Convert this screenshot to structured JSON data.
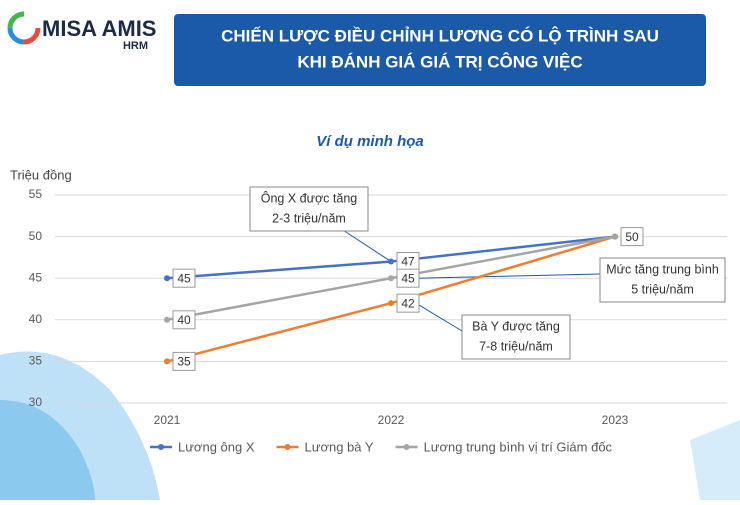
{
  "logo": {
    "brand": "MISA AMIS",
    "product": "HRM"
  },
  "header": {
    "title_lines": [
      "CHIẾN LƯỢC ĐIỀU CHỈNH LƯƠNG CÓ LỘ TRÌNH SAU",
      "KHI ĐÁNH GIÁ GIÁ TRỊ CÔNG VIỆC"
    ]
  },
  "chart_data": {
    "type": "line",
    "title": "Ví dụ minh họa",
    "y_label": "Triệu đồng",
    "categories": [
      "2021",
      "2022",
      "2023"
    ],
    "series": [
      {
        "name": "Lương ông X",
        "color": "#4472c4",
        "values": [
          45,
          47,
          50
        ]
      },
      {
        "name": "Lương bà Y",
        "color": "#ed7d31",
        "values": [
          35,
          42,
          50
        ]
      },
      {
        "name": "Lương trung bình vị trí Giám đốc",
        "color": "#a5a5a5",
        "values": [
          40,
          45,
          50
        ]
      }
    ],
    "ylim": [
      30,
      55
    ],
    "yticks": [
      30,
      35,
      40,
      45,
      50,
      55
    ],
    "grid": true,
    "legend": "bottom",
    "annotations": [
      {
        "lines": [
          "Ông X được tăng",
          "2-3 triệu/năm"
        ]
      },
      {
        "lines": [
          "Mức tăng trung bình",
          "5 triệu/năm"
        ]
      },
      {
        "lines": [
          "Bà Y được tăng",
          "7-8 triệu/năm"
        ]
      }
    ]
  }
}
